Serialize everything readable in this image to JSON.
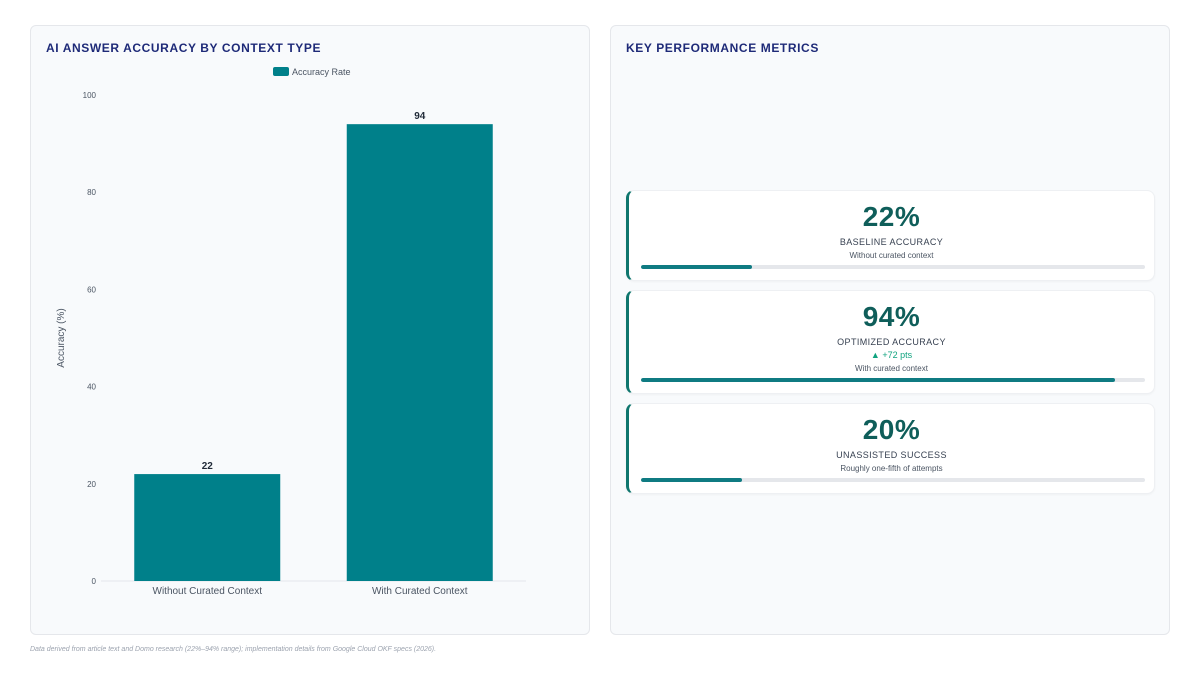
{
  "chart_panel": {
    "title": "AI ANSWER ACCURACY BY CONTEXT TYPE"
  },
  "chart_data": {
    "type": "bar",
    "categories": [
      "Without Curated Context",
      "With Curated Context"
    ],
    "series": [
      {
        "name": "Accuracy Rate",
        "values": [
          22,
          94
        ]
      }
    ],
    "ylabel": "Accuracy (%)",
    "xlabel": "",
    "ylim": [
      0,
      100
    ],
    "yticks": [
      0,
      20,
      40,
      60,
      80,
      100
    ],
    "bar_color": "#00808a",
    "legend_position": "top-center",
    "grid": false
  },
  "metrics_panel": {
    "title": "KEY PERFORMANCE METRICS",
    "cards": [
      {
        "value": "22%",
        "label": "BASELINE ACCURACY",
        "delta": "",
        "sub": "Without curated context",
        "progress": 22
      },
      {
        "value": "94%",
        "label": "OPTIMIZED ACCURACY",
        "delta": "▲ +72 pts",
        "sub": "With curated context",
        "progress": 94
      },
      {
        "value": "20%",
        "label": "UNASSISTED SUCCESS",
        "delta": "",
        "sub": "Roughly one-fifth of attempts",
        "progress": 20
      }
    ]
  },
  "colors": {
    "accent": "#0f7b82",
    "title": "#1e2a78",
    "delta": "#10a37f"
  },
  "footnote": "Data derived from article text and Domo research (22%–94% range); implementation details from Google Cloud OKF specs (2026)."
}
